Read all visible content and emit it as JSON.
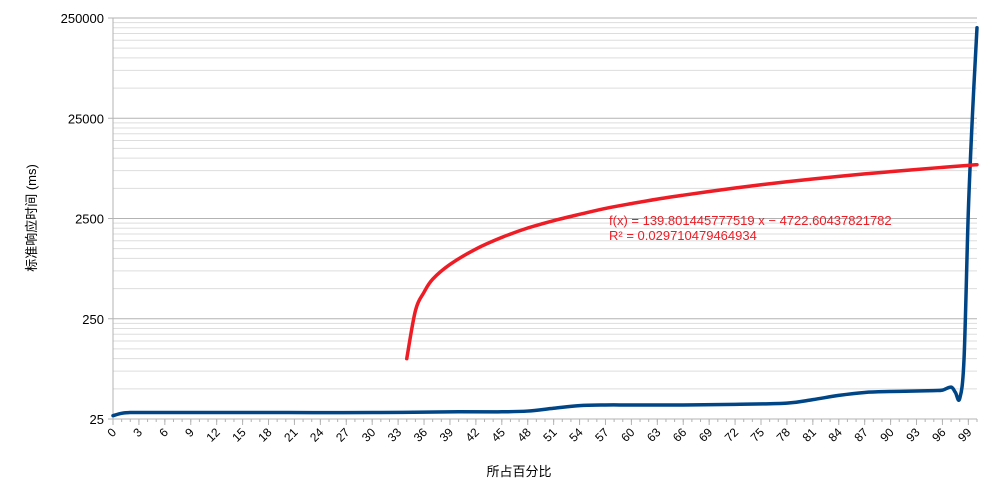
{
  "chart_data": {
    "type": "line",
    "title": "",
    "xlabel": "所占百分比",
    "ylabel": "标准响应时间 (ms)",
    "y_scale": "log",
    "ylim": [
      25,
      250000
    ],
    "xlim": [
      0,
      100
    ],
    "y_ticks": [
      "250000",
      "25000",
      "2500",
      "250",
      "25"
    ],
    "x_ticks": [
      "0",
      "3",
      "6",
      "9",
      "12",
      "15",
      "18",
      "21",
      "24",
      "27",
      "30",
      "33",
      "36",
      "39",
      "42",
      "45",
      "48",
      "51",
      "54",
      "57",
      "60",
      "63",
      "66",
      "69",
      "72",
      "75",
      "78",
      "81",
      "84",
      "87",
      "90",
      "93",
      "96",
      "99"
    ],
    "grid": true,
    "legend": "none",
    "series": [
      {
        "color": "#004586",
        "x": [
          0,
          1,
          2,
          3,
          5,
          10,
          20,
          30,
          40,
          45,
          48,
          51,
          54,
          57,
          60,
          66,
          72,
          78,
          81,
          84,
          87,
          90,
          93,
          95,
          96,
          97,
          97.5,
          98,
          98.5,
          99,
          99.5,
          100
        ],
        "y": [
          27,
          28.5,
          29,
          29,
          29,
          29,
          29,
          29,
          29.5,
          29.5,
          30,
          32,
          34,
          34.5,
          34.5,
          34.5,
          35,
          36,
          39,
          43,
          46,
          47,
          47.5,
          48,
          48.5,
          52,
          46,
          40,
          100,
          3000,
          30000,
          200000
        ]
      },
      {
        "color": "#ee1c25",
        "x": [
          34,
          35,
          36,
          37,
          39,
          42,
          45,
          48,
          51,
          54,
          57,
          60,
          63,
          66,
          69,
          72,
          75,
          78,
          81,
          84,
          87,
          90,
          93,
          96,
          99,
          100
        ],
        "y": [
          100,
          300,
          460,
          620,
          870,
          1240,
          1620,
          2010,
          2380,
          2750,
          3150,
          3520,
          3900,
          4270,
          4650,
          5040,
          5430,
          5820,
          6200,
          6580,
          6960,
          7330,
          7710,
          8090,
          8480,
          8600
        ]
      }
    ],
    "annotations": [
      "f(x) = 139.801445777519 x − 4722.60437821782",
      "R² = 0.029710479464934"
    ]
  }
}
